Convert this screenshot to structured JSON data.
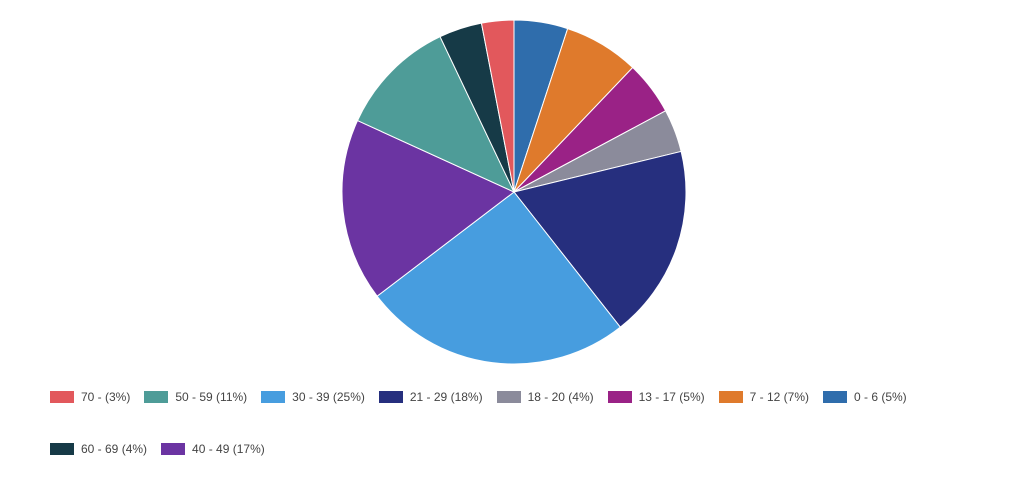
{
  "chart_data": {
    "type": "pie",
    "title": "",
    "start_angle_deg": 0,
    "direction": "clockwise",
    "slices": [
      {
        "label": "0 - 6 (5%)",
        "value": 5,
        "color": "#2f6dac"
      },
      {
        "label": "7 - 12 (7%)",
        "value": 7,
        "color": "#df7a2c"
      },
      {
        "label": "13 - 17 (5%)",
        "value": 5,
        "color": "#9a2286"
      },
      {
        "label": "18 - 20 (4%)",
        "value": 4,
        "color": "#8b8b9b"
      },
      {
        "label": "21 - 29 (18%)",
        "value": 18,
        "color": "#262f7e"
      },
      {
        "label": "30 - 39 (25%)",
        "value": 25,
        "color": "#479ddf"
      },
      {
        "label": "40 - 49 (17%)",
        "value": 17,
        "color": "#6b34a2"
      },
      {
        "label": "50 - 59 (11%)",
        "value": 11,
        "color": "#4e9c98"
      },
      {
        "label": "60 - 69 (4%)",
        "value": 4,
        "color": "#163a47"
      },
      {
        "label": "70 - (3%)",
        "value": 3,
        "color": "#e2585c"
      }
    ],
    "legend_order": [
      "70 - (3%)",
      "50 - 59 (11%)",
      "30 - 39 (25%)",
      "21 - 29 (18%)",
      "18 - 20 (4%)",
      "13 - 17 (5%)",
      "7 - 12 (7%)",
      "0 - 6 (5%)",
      "60 - 69 (4%)",
      "40 - 49 (17%)"
    ],
    "legend_position": "bottom"
  }
}
